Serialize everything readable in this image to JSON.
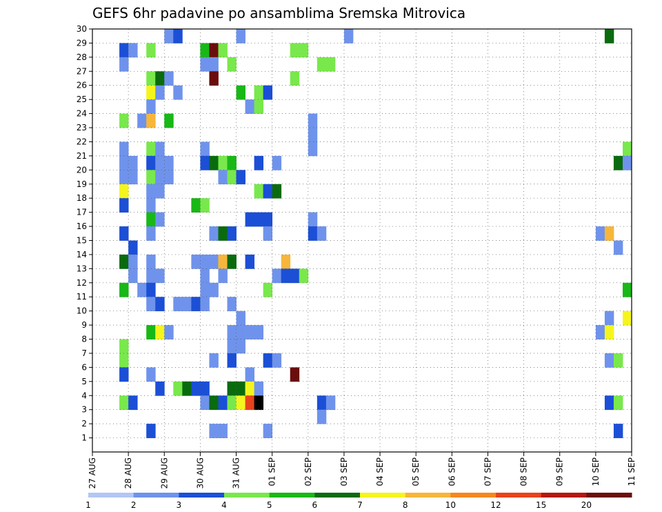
{
  "chart_data": {
    "type": "heatmap",
    "title": "GEFS 6hr padavine po ansamblima Sremska Mitrovica",
    "xlabel": "",
    "ylabel": "",
    "y_ticks": [
      "1",
      "2",
      "3",
      "4",
      "5",
      "6",
      "7",
      "8",
      "9",
      "10",
      "11",
      "12",
      "13",
      "14",
      "15",
      "16",
      "17",
      "18",
      "19",
      "20",
      "21",
      "22",
      "23",
      "24",
      "25",
      "26",
      "27",
      "28",
      "29",
      "30"
    ],
    "ylim": [
      0,
      30
    ],
    "x_ticks": [
      "27 AUG",
      "28 AUG",
      "29 AUG",
      "30 AUG",
      "31 AUG",
      "01 SEP",
      "02 SEP",
      "03 SEP",
      "04 SEP",
      "05 SEP",
      "06 SEP",
      "07 SEP",
      "08 SEP",
      "09 SEP",
      "10 SEP",
      "11 SEP"
    ],
    "x_unit": "6h steps from 27 AUG 00Z",
    "xlim": [
      0,
      60
    ],
    "grid": true,
    "colorbar": {
      "labels": [
        "1",
        "2",
        "3",
        "4",
        "5",
        "6",
        "7",
        "8",
        "10",
        "12",
        "15",
        "20"
      ],
      "colors": [
        "#b3c6f4",
        "#6f93ec",
        "#1b4fd6",
        "#79e84c",
        "#18b817",
        "#0a6b0e",
        "#f5f51e",
        "#f7b63a",
        "#f6871d",
        "#e9421c",
        "#b5170f",
        "#6b0d0d"
      ]
    },
    "cells": [
      [
        8,
        30,
        1
      ],
      [
        9,
        30,
        2
      ],
      [
        16,
        30,
        1
      ],
      [
        28,
        30,
        1
      ],
      [
        57,
        30,
        5
      ],
      [
        3,
        29,
        2
      ],
      [
        4,
        29,
        1
      ],
      [
        6,
        29,
        3
      ],
      [
        12,
        29,
        4
      ],
      [
        13,
        29,
        11
      ],
      [
        14,
        29,
        3
      ],
      [
        22,
        29,
        3
      ],
      [
        23,
        29,
        3
      ],
      [
        3,
        28,
        1
      ],
      [
        12,
        28,
        1
      ],
      [
        13,
        28,
        1
      ],
      [
        15,
        28,
        3
      ],
      [
        25,
        28,
        3
      ],
      [
        26,
        28,
        3
      ],
      [
        6,
        27,
        3
      ],
      [
        7,
        27,
        5
      ],
      [
        8,
        27,
        1
      ],
      [
        13,
        27,
        11
      ],
      [
        22,
        27,
        3
      ],
      [
        6,
        26,
        6
      ],
      [
        7,
        26,
        1
      ],
      [
        9,
        26,
        1
      ],
      [
        16,
        26,
        4
      ],
      [
        18,
        26,
        3
      ],
      [
        19,
        26,
        2
      ],
      [
        6,
        25,
        1
      ],
      [
        17,
        25,
        1
      ],
      [
        18,
        25,
        3
      ],
      [
        3,
        24,
        3
      ],
      [
        5,
        24,
        1
      ],
      [
        6,
        24,
        7
      ],
      [
        8,
        24,
        4
      ],
      [
        24,
        24,
        1
      ],
      [
        24,
        23,
        1
      ],
      [
        3,
        22,
        1
      ],
      [
        6,
        22,
        3
      ],
      [
        7,
        22,
        1
      ],
      [
        12,
        22,
        1
      ],
      [
        24,
        22,
        1
      ],
      [
        59,
        22,
        3
      ],
      [
        3,
        21,
        1
      ],
      [
        4,
        21,
        1
      ],
      [
        6,
        21,
        2
      ],
      [
        7,
        21,
        1
      ],
      [
        8,
        21,
        1
      ],
      [
        12,
        21,
        2
      ],
      [
        13,
        21,
        5
      ],
      [
        14,
        21,
        3
      ],
      [
        15,
        21,
        4
      ],
      [
        18,
        21,
        2
      ],
      [
        20,
        21,
        1
      ],
      [
        58,
        21,
        5
      ],
      [
        59,
        21,
        1
      ],
      [
        3,
        20,
        1
      ],
      [
        4,
        20,
        1
      ],
      [
        6,
        20,
        3
      ],
      [
        7,
        20,
        1
      ],
      [
        8,
        20,
        1
      ],
      [
        14,
        20,
        1
      ],
      [
        15,
        20,
        3
      ],
      [
        16,
        20,
        2
      ],
      [
        3,
        19,
        6
      ],
      [
        6,
        19,
        1
      ],
      [
        7,
        19,
        1
      ],
      [
        18,
        19,
        3
      ],
      [
        19,
        19,
        2
      ],
      [
        20,
        19,
        5
      ],
      [
        3,
        18,
        2
      ],
      [
        6,
        18,
        1
      ],
      [
        11,
        18,
        4
      ],
      [
        12,
        18,
        3
      ],
      [
        6,
        17,
        4
      ],
      [
        7,
        17,
        1
      ],
      [
        17,
        17,
        2
      ],
      [
        18,
        17,
        2
      ],
      [
        19,
        17,
        2
      ],
      [
        24,
        17,
        1
      ],
      [
        3,
        16,
        2
      ],
      [
        6,
        16,
        1
      ],
      [
        13,
        16,
        1
      ],
      [
        14,
        16,
        5
      ],
      [
        15,
        16,
        2
      ],
      [
        19,
        16,
        1
      ],
      [
        24,
        16,
        2
      ],
      [
        25,
        16,
        1
      ],
      [
        56,
        16,
        1
      ],
      [
        57,
        16,
        7
      ],
      [
        4,
        15,
        2
      ],
      [
        58,
        15,
        1
      ],
      [
        3,
        14,
        5
      ],
      [
        4,
        14,
        1
      ],
      [
        6,
        14,
        1
      ],
      [
        11,
        14,
        1
      ],
      [
        12,
        14,
        1
      ],
      [
        13,
        14,
        1
      ],
      [
        14,
        14,
        7
      ],
      [
        15,
        14,
        5
      ],
      [
        17,
        14,
        2
      ],
      [
        21,
        14,
        7
      ],
      [
        4,
        13,
        1
      ],
      [
        6,
        13,
        1
      ],
      [
        7,
        13,
        1
      ],
      [
        12,
        13,
        1
      ],
      [
        14,
        13,
        1
      ],
      [
        20,
        13,
        1
      ],
      [
        21,
        13,
        2
      ],
      [
        22,
        13,
        2
      ],
      [
        23,
        13,
        3
      ],
      [
        3,
        12,
        4
      ],
      [
        5,
        12,
        1
      ],
      [
        6,
        12,
        2
      ],
      [
        12,
        12,
        1
      ],
      [
        13,
        12,
        1
      ],
      [
        19,
        12,
        3
      ],
      [
        59,
        12,
        4
      ],
      [
        6,
        11,
        1
      ],
      [
        7,
        11,
        2
      ],
      [
        9,
        11,
        1
      ],
      [
        10,
        11,
        1
      ],
      [
        11,
        11,
        2
      ],
      [
        12,
        11,
        1
      ],
      [
        15,
        11,
        1
      ],
      [
        16,
        10,
        1
      ],
      [
        57,
        10,
        1
      ],
      [
        59,
        10,
        6
      ],
      [
        6,
        9,
        4
      ],
      [
        7,
        9,
        6
      ],
      [
        8,
        9,
        1
      ],
      [
        15,
        9,
        1
      ],
      [
        16,
        9,
        1
      ],
      [
        17,
        9,
        1
      ],
      [
        18,
        9,
        1
      ],
      [
        56,
        9,
        1
      ],
      [
        57,
        9,
        6
      ],
      [
        3,
        8,
        3
      ],
      [
        15,
        8,
        1
      ],
      [
        16,
        8,
        1
      ],
      [
        3,
        7,
        3
      ],
      [
        13,
        7,
        1
      ],
      [
        15,
        7,
        2
      ],
      [
        19,
        7,
        2
      ],
      [
        20,
        7,
        1
      ],
      [
        57,
        7,
        1
      ],
      [
        58,
        7,
        3
      ],
      [
        3,
        6,
        2
      ],
      [
        6,
        6,
        1
      ],
      [
        17,
        6,
        1
      ],
      [
        22,
        6,
        11
      ],
      [
        7,
        5,
        2
      ],
      [
        9,
        5,
        3
      ],
      [
        10,
        5,
        5
      ],
      [
        11,
        5,
        2
      ],
      [
        12,
        5,
        2
      ],
      [
        15,
        5,
        5
      ],
      [
        16,
        5,
        5
      ],
      [
        17,
        5,
        6
      ],
      [
        18,
        5,
        1
      ],
      [
        3,
        4,
        3
      ],
      [
        4,
        4,
        2
      ],
      [
        12,
        4,
        1
      ],
      [
        13,
        4,
        5
      ],
      [
        14,
        4,
        2
      ],
      [
        15,
        4,
        3
      ],
      [
        16,
        4,
        6
      ],
      [
        17,
        4,
        9
      ],
      [
        18,
        4,
        12
      ],
      [
        25,
        4,
        2
      ],
      [
        26,
        4,
        1
      ],
      [
        57,
        4,
        2
      ],
      [
        58,
        4,
        3
      ],
      [
        25,
        3,
        1
      ],
      [
        6,
        2,
        2
      ],
      [
        13,
        2,
        1
      ],
      [
        14,
        2,
        1
      ],
      [
        19,
        2,
        1
      ],
      [
        58,
        2,
        2
      ]
    ]
  }
}
